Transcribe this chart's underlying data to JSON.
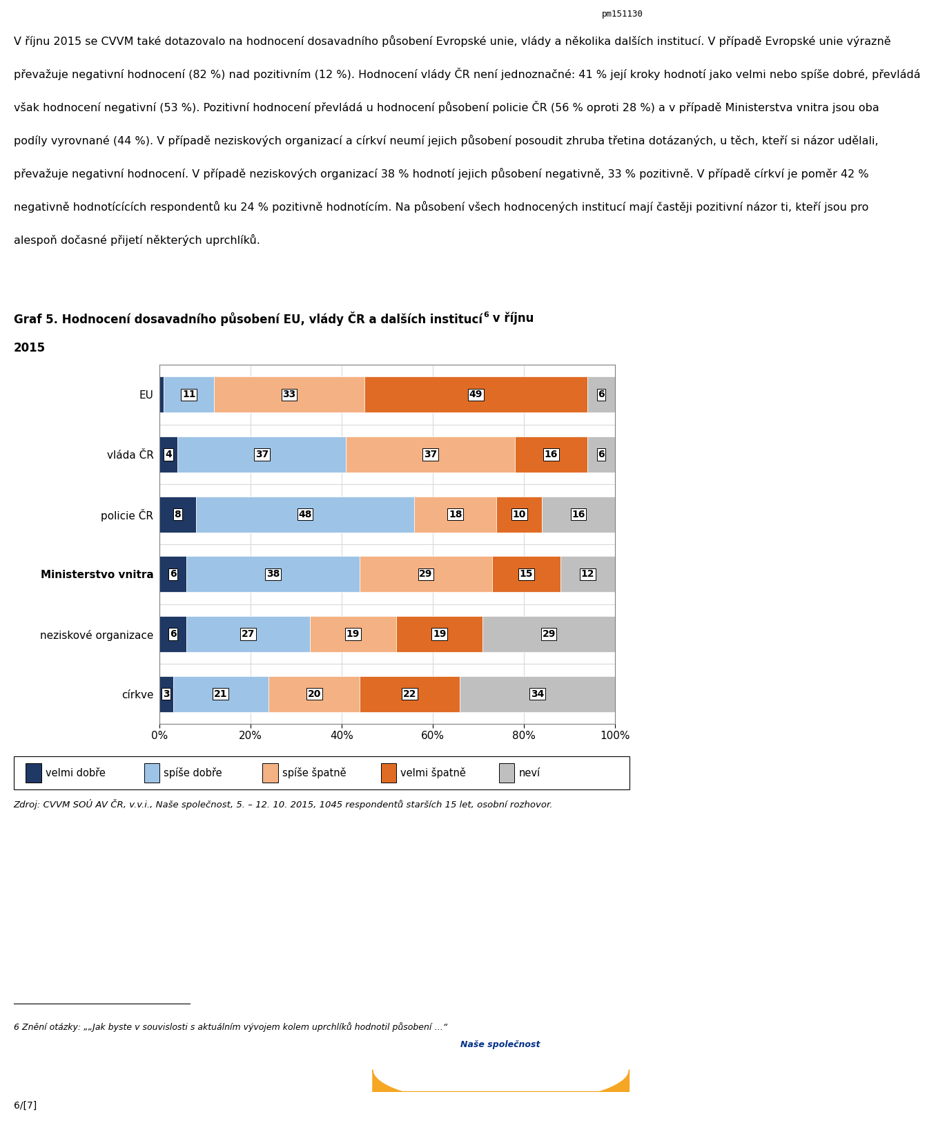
{
  "categories": [
    "EU",
    "vláda ČR",
    "policie ČR",
    "Ministerstvo vnitra",
    "neziskové organizace",
    "církve"
  ],
  "series_labels": [
    "velmi dobře",
    "spíše dobře",
    "spíše špatně",
    "velmi špatně",
    "neví"
  ],
  "colors": [
    "#1f3864",
    "#9dc3e6",
    "#f4b183",
    "#e06b24",
    "#bfbfbf"
  ],
  "data": [
    [
      1,
      11,
      33,
      49,
      6
    ],
    [
      4,
      37,
      37,
      16,
      6
    ],
    [
      8,
      48,
      18,
      10,
      16
    ],
    [
      6,
      38,
      29,
      15,
      12
    ],
    [
      6,
      27,
      19,
      19,
      29
    ],
    [
      3,
      21,
      20,
      22,
      34
    ]
  ],
  "header_text": "pm151130",
  "title_bold": "Graf 5. Hodnocení dosavadního působení EU, vlády ČR a dalších institucí",
  "title_sup": "6",
  "title_end": " v říjnu\n2015",
  "body_lines": [
    "V říjnu 2015 se CVVM také dotazovalo na hodnocení dosavadního působení Evropské unie, vlády a několika dalších institucí. V případě Evropské unie výrazně",
    "převažuje negativní hodnocení (82 %) nad pozitivním (12 %). Hodnocení vlády ČR není jednoznačné: 41 % její kroky hodnotí jako velmi nebo spíše dobré, převládá",
    "však hodnocení negativní (53 %). Pozitivní hodnocení převládá u hodnocení působení policie ČR (56 % oproti 28 %) a v případě Ministerstva vnitra jsou oba",
    "podíly vyrovnané (44 %). V případě neziskových organizací a církví neumí jejich působení posoudit zhruba třetina dotázaných, u těch, kteří si názor udělali,",
    "převažuje negativní hodnocení. V případě neziskových organizací 38 % hodnotí jejich působení negativně, 33 % pozitivně. V případě církví je poměr 42 %",
    "negativně hodnotícících respondentů ku 24 % pozitivně hodnotícím. Na působení všech hodnocených institucí mají častěji pozitivní názor ti, kteří jsou pro",
    "alespoň dočasné přijetí některých uprchlíků."
  ],
  "source_text": "Zdroj: CVVM SOÚ AV ČR, v.v.i., Naše společnost, 5. – 12. 10. 2015, 1045 respondentů starších 15 let, osobní rozhovor.",
  "footnote_num": "6",
  "footnote_text": " Znění otázky: „„Jak byste v souvislosti s aktuálním vývojem kolem uprchlíků hodnotil působení …“",
  "page": "6/[7]",
  "grid_color": "#d9d9d9",
  "bar_height": 0.6
}
